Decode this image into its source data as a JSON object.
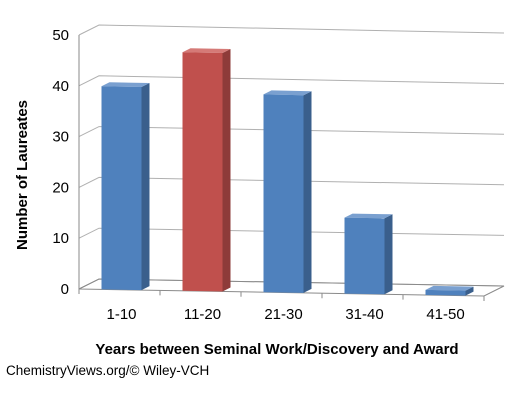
{
  "chart_data": {
    "type": "bar",
    "categories": [
      "1-10",
      "11-20",
      "21-30",
      "31-40",
      "41-50"
    ],
    "values": [
      40,
      47,
      39,
      15,
      1
    ],
    "highlight_index": 1,
    "colors": {
      "bar": "#4f81bd",
      "highlight": "#c0504d",
      "grid": "#b0b0b0"
    },
    "title": "",
    "xlabel": "Years between Seminal Work/Discovery and Award",
    "ylabel": "Number of Laureates",
    "ylim": [
      0,
      50
    ],
    "yticks": [
      0,
      10,
      20,
      30,
      40,
      50
    ],
    "grid": true,
    "style": "3d-perspective"
  },
  "credit": "ChemistryViews.org/© Wiley-VCH"
}
